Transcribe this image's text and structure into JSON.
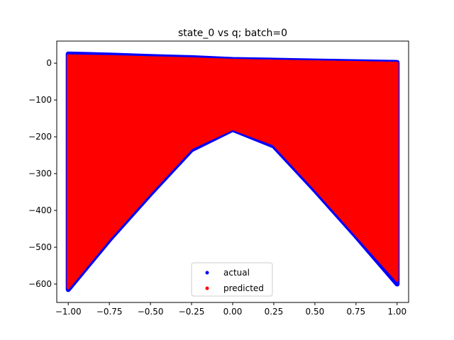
{
  "chart_data": {
    "type": "scatter",
    "title": "state_0 vs q; batch=0",
    "xlabel": "",
    "ylabel": "",
    "xlim": [
      -1.07,
      1.07
    ],
    "ylim": [
      -650,
      60
    ],
    "xticks": [
      -1.0,
      -0.75,
      -0.5,
      -0.25,
      0.0,
      0.25,
      0.5,
      0.75,
      1.0
    ],
    "xtick_labels": [
      "−1.00",
      "−0.75",
      "−0.50",
      "−0.25",
      "0.00",
      "0.25",
      "0.50",
      "0.75",
      "1.00"
    ],
    "yticks": [
      0,
      -100,
      -200,
      -300,
      -400,
      -500,
      -600
    ],
    "ytick_labels": [
      "0",
      "−100",
      "−200",
      "−300",
      "−400",
      "−500",
      "−600"
    ],
    "legend_position": "lower-center",
    "series": [
      {
        "name": "actual",
        "color": "#0000ff",
        "marker": "dot",
        "region_envelope": {
          "x": [
            -1.0,
            -0.75,
            -0.5,
            -0.25,
            0.0,
            0.25,
            0.5,
            0.75,
            1.0
          ],
          "y_top": [
            25,
            22,
            18,
            15,
            10,
            8,
            6,
            4,
            2
          ],
          "y_bottom": [
            -615,
            -480,
            -355,
            -235,
            -180,
            -225,
            -345,
            -470,
            -600
          ]
        }
      },
      {
        "name": "predicted",
        "color": "#ff0000",
        "marker": "dot",
        "region_envelope": {
          "x": [
            -1.0,
            -0.75,
            -0.5,
            -0.25,
            0.0,
            0.25,
            0.5,
            0.75,
            1.0
          ],
          "y_top": [
            20,
            18,
            15,
            12,
            8,
            6,
            4,
            2,
            0
          ],
          "y_bottom": [
            -610,
            -475,
            -350,
            -230,
            -178,
            -220,
            -340,
            -465,
            -590
          ]
        }
      }
    ]
  }
}
